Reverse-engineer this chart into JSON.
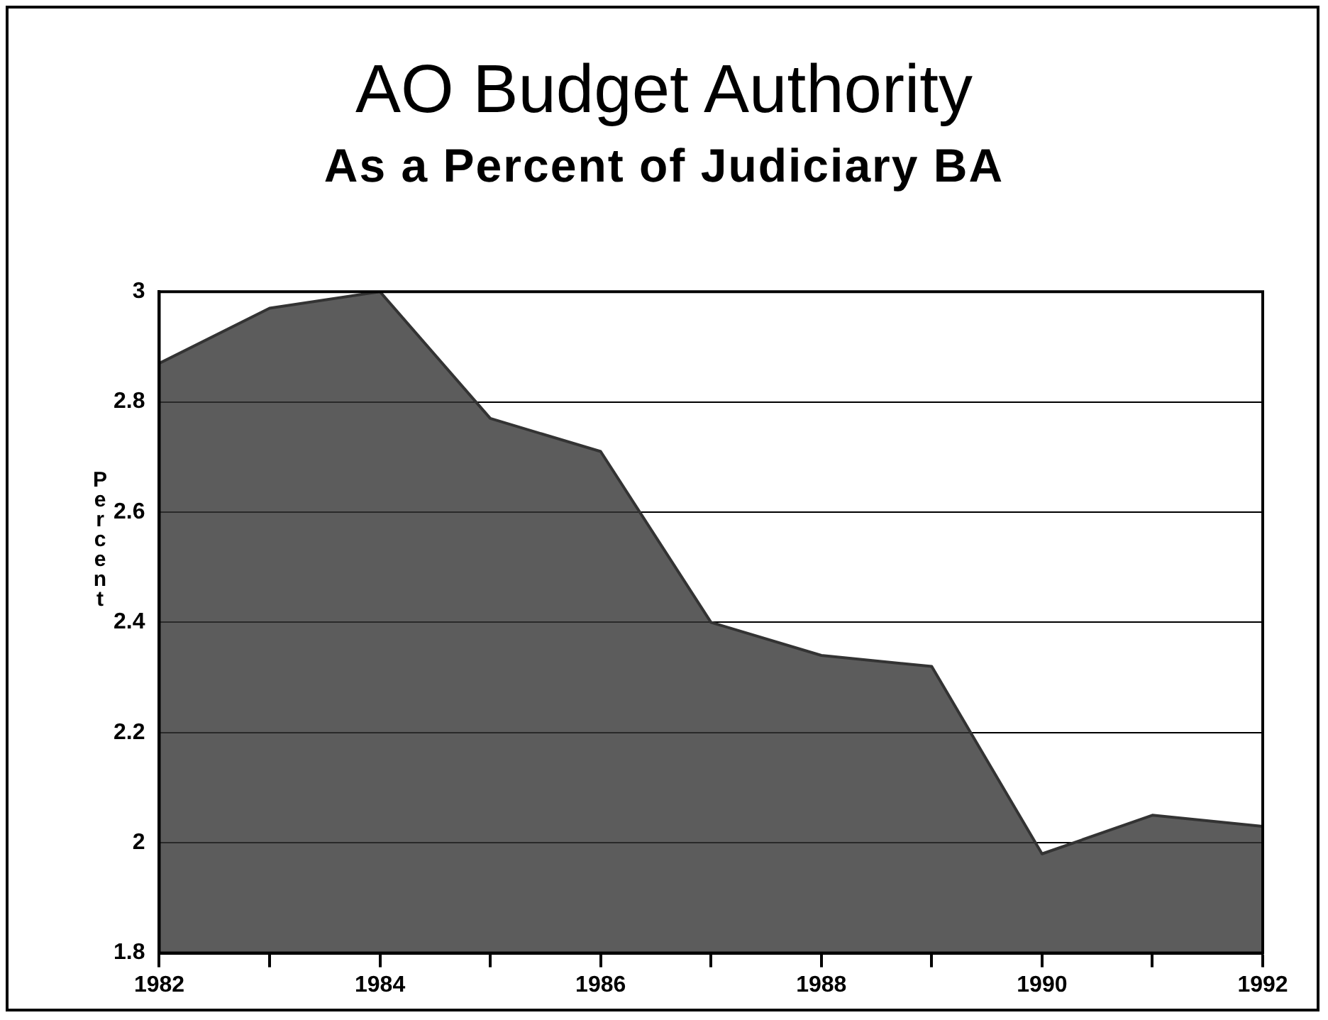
{
  "chart_data": {
    "type": "area",
    "title": "AO Budget Authority",
    "subtitle": "As a Percent of Judiciary BA",
    "ylabel": "Percent",
    "x": [
      1982,
      1983,
      1984,
      1985,
      1986,
      1987,
      1988,
      1989,
      1990,
      1991,
      1992
    ],
    "series": [
      {
        "color": "#333333",
        "values": [
          2.87,
          2.97,
          3.0,
          2.77,
          2.71,
          2.4,
          2.34,
          2.32,
          1.98,
          2.05,
          2.03
        ]
      }
    ],
    "xlim": [
      1982,
      1992
    ],
    "xticks": [
      1982,
      {
        "value": 1983,
        "label": null
      },
      1984,
      {
        "value": 1985,
        "label": null
      },
      1986,
      {
        "value": 1987,
        "label": null
      },
      1988,
      {
        "value": 1989,
        "label": null
      },
      1990,
      {
        "value": 1991,
        "label": null
      },
      1992
    ],
    "ylim": [
      1.8,
      3
    ],
    "yticks": [
      1.8,
      2,
      2.2,
      2.4,
      2.6,
      2.8,
      3
    ],
    "grid": "y",
    "line_style": "solid",
    "marker": "none",
    "legend": false
  }
}
